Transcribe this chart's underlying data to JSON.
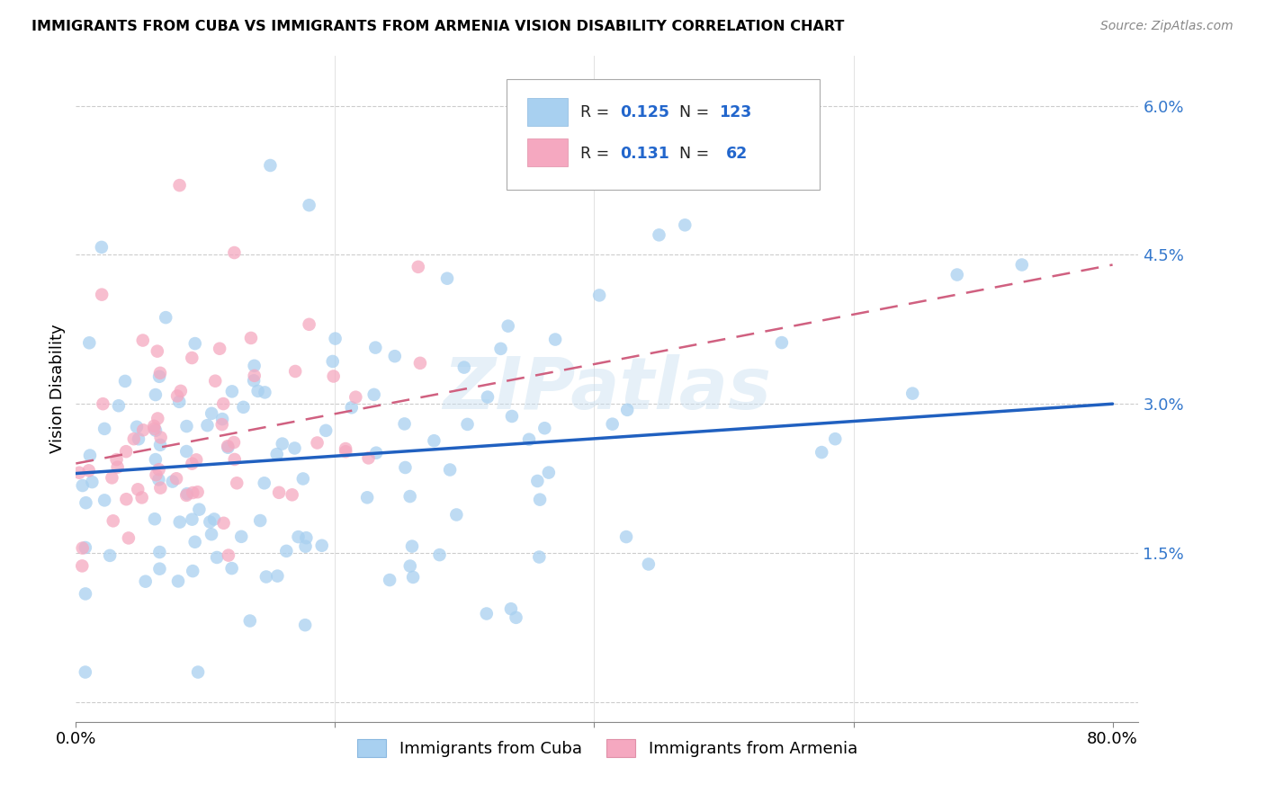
{
  "title": "IMMIGRANTS FROM CUBA VS IMMIGRANTS FROM ARMENIA VISION DISABILITY CORRELATION CHART",
  "source": "Source: ZipAtlas.com",
  "ylabel": "Vision Disability",
  "yticks": [
    0.0,
    0.015,
    0.03,
    0.045,
    0.06
  ],
  "ytick_labels": [
    "",
    "1.5%",
    "3.0%",
    "4.5%",
    "6.0%"
  ],
  "xticks": [
    0.0,
    0.2,
    0.4,
    0.6,
    0.8
  ],
  "xtick_labels": [
    "0.0%",
    "",
    "",
    "",
    "80.0%"
  ],
  "xlim": [
    0.0,
    0.82
  ],
  "ylim": [
    -0.002,
    0.065
  ],
  "cuba_color": "#a8d0f0",
  "armenia_color": "#f5a8c0",
  "cuba_line_color": "#2060c0",
  "armenia_line_color": "#d06080",
  "watermark": "ZIPatlas",
  "legend_cuba_R": "0.125",
  "legend_cuba_N": "123",
  "legend_armenia_R": "0.131",
  "legend_armenia_N": "62",
  "cuba_trend_x0": 0.0,
  "cuba_trend_x1": 0.8,
  "cuba_trend_y0": 0.023,
  "cuba_trend_y1": 0.03,
  "armenia_trend_x0": 0.0,
  "armenia_trend_x1": 0.8,
  "armenia_trend_y0": 0.024,
  "armenia_trend_y1": 0.044
}
